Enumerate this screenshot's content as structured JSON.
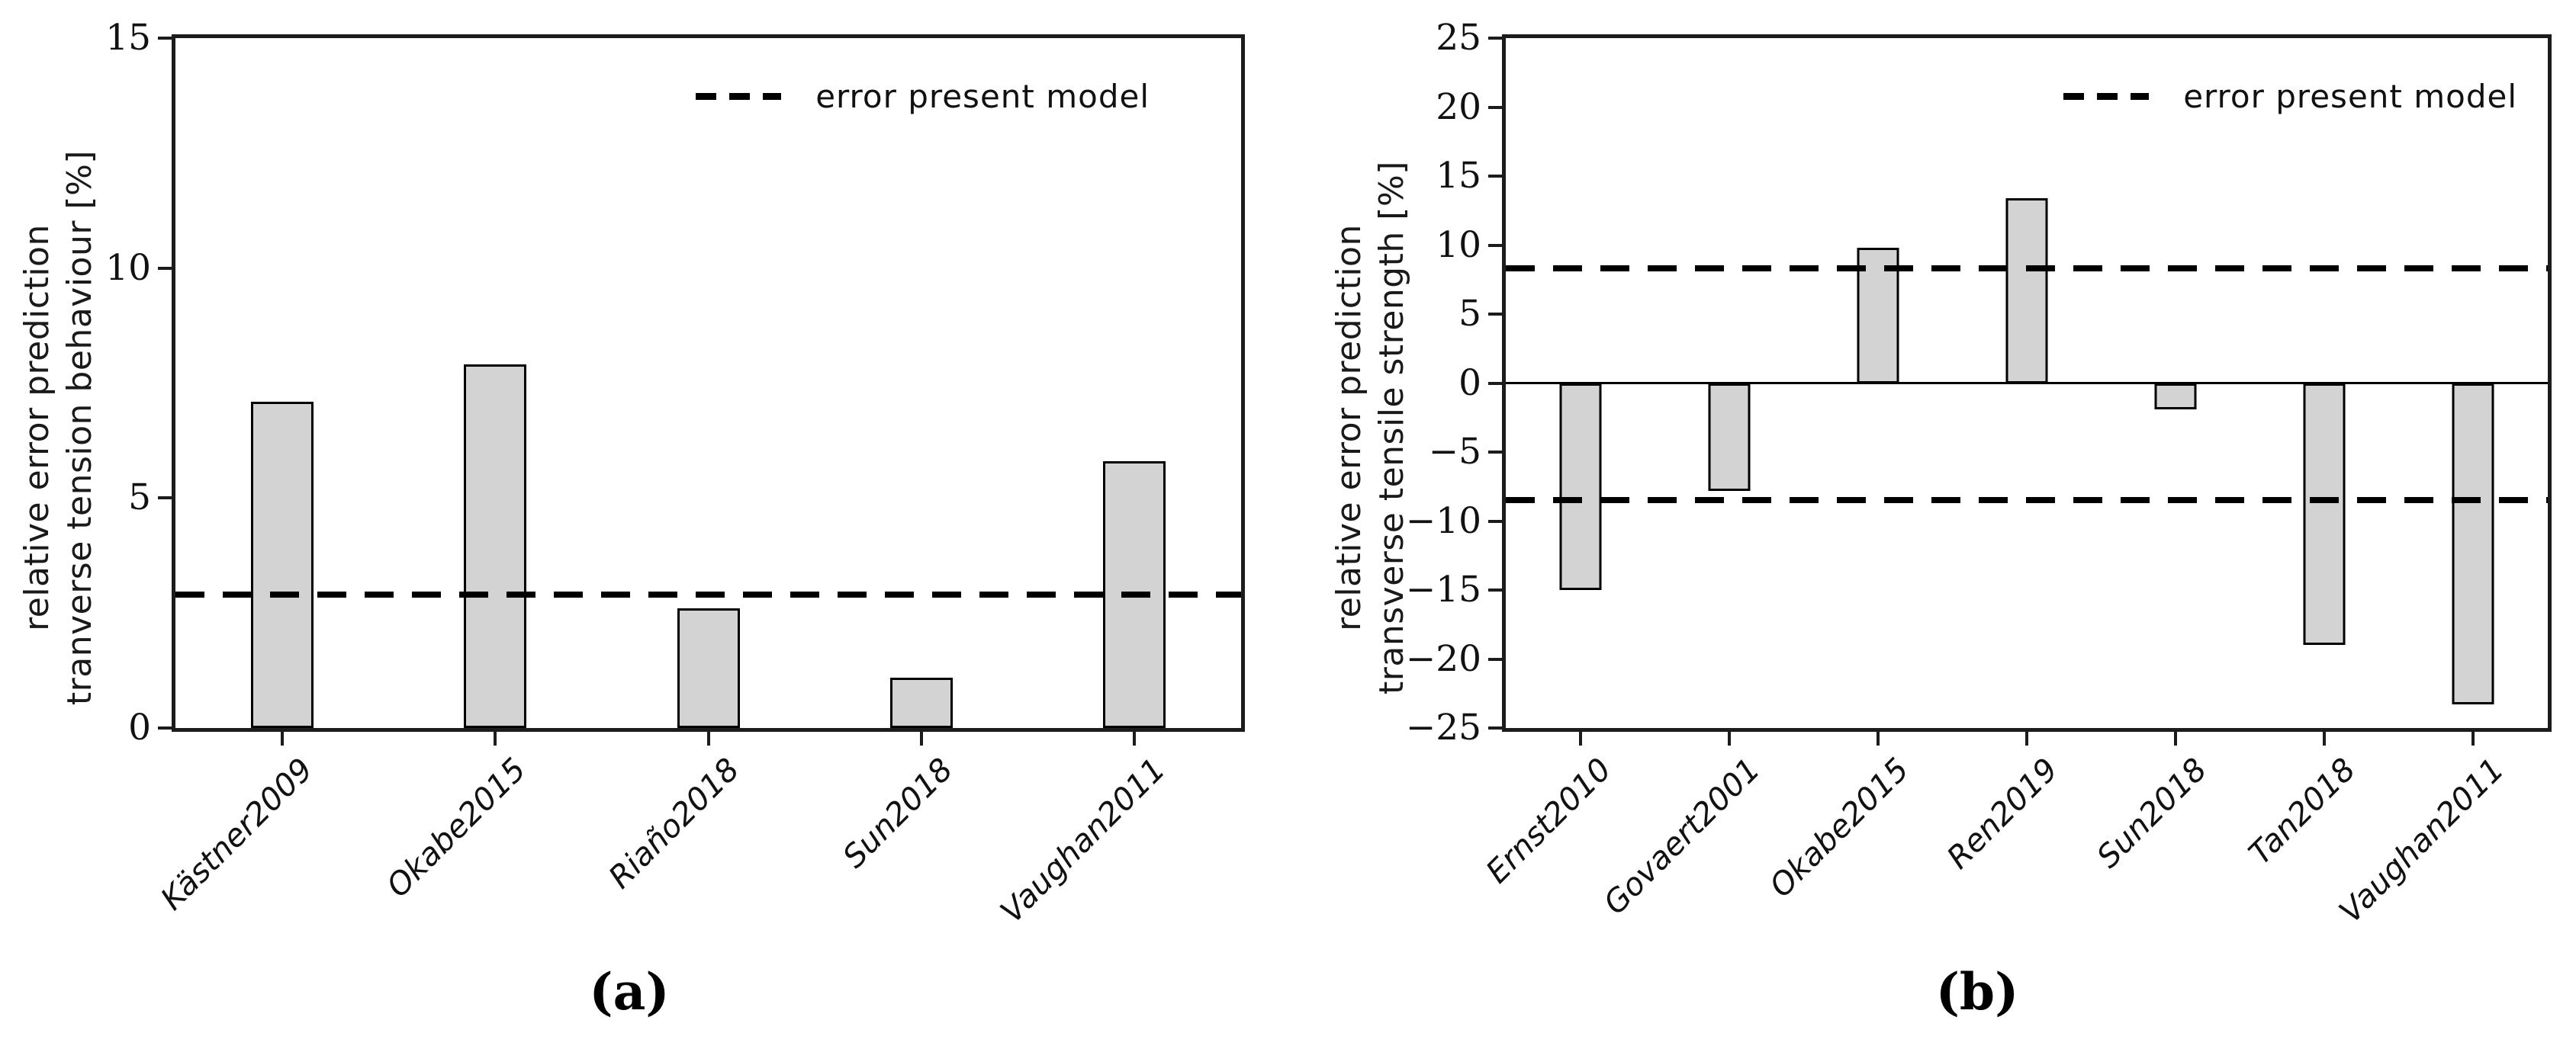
{
  "figure": {
    "legend_label": "error present model"
  },
  "chart_data": [
    {
      "id": "a",
      "type": "bar",
      "title": "",
      "xlabel": "",
      "ylabel": [
        "relative error prediction",
        "tranverse tension behaviour [%]"
      ],
      "categories": [
        "Kästner2009",
        "Okabe2015",
        "Riaño2018",
        "Sun2018",
        "Vaughan2011"
      ],
      "values": [
        7.1,
        7.9,
        2.6,
        1.1,
        5.8
      ],
      "dashed_lines": [
        2.9
      ],
      "dashed_line_label": "error present model",
      "ylim": [
        0,
        15
      ],
      "yticks": [
        0,
        5,
        10,
        15
      ],
      "ytick_labels": [
        "0",
        "5",
        "10",
        "15"
      ],
      "bar_fill_color": "#d3d3d3",
      "bar_edge_color": "#000000",
      "grid": false,
      "legend_position": "top-right",
      "legend": [
        "error present model"
      ],
      "caption": "(a)"
    },
    {
      "id": "b",
      "type": "bar",
      "title": "",
      "xlabel": "",
      "ylabel": [
        "relative error prediction",
        "transverse tensile strength [%]"
      ],
      "categories": [
        "Ernst2010",
        "Govaert2001",
        "Okabe2015",
        "Ren2019",
        "Sun2018",
        "Tan2018",
        "Vaughan2011"
      ],
      "values": [
        -15.0,
        -7.8,
        9.8,
        13.4,
        -1.9,
        -19.0,
        -23.3
      ],
      "dashed_lines": [
        8.3,
        -8.5
      ],
      "dashed_line_label": "error present model",
      "zero_line": true,
      "ylim": [
        -25,
        25
      ],
      "yticks": [
        -25,
        -20,
        -15,
        -10,
        -5,
        0,
        5,
        10,
        15,
        20,
        25
      ],
      "ytick_labels": [
        "−25",
        "−20",
        "−15",
        "−10",
        "−5",
        "0",
        "5",
        "10",
        "15",
        "20",
        "25"
      ],
      "bar_fill_color": "#d3d3d3",
      "bar_edge_color": "#000000",
      "grid": false,
      "legend_position": "top-right",
      "legend": [
        "error present model"
      ],
      "caption": "(b)"
    }
  ]
}
